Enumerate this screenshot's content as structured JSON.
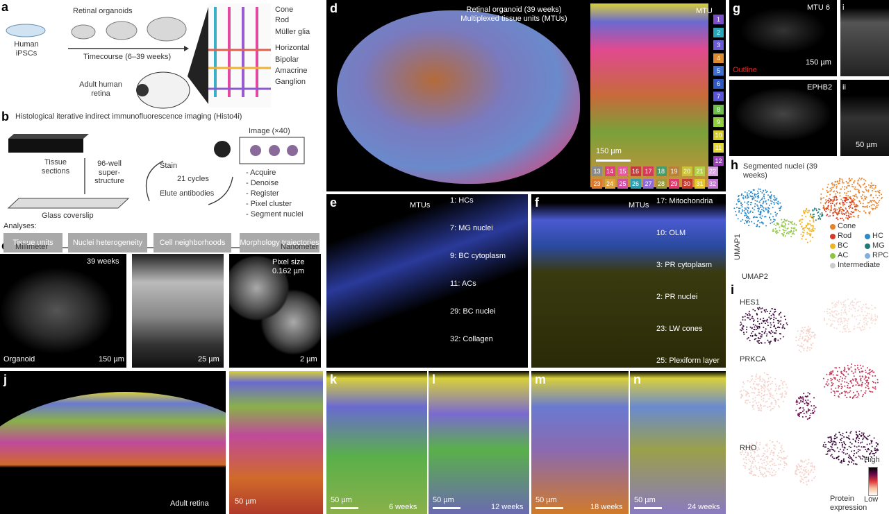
{
  "a": {
    "letter": "a",
    "organoids": "Retinal organoids",
    "ipsc": "Human iPSCs",
    "timecourse": "Timecourse (6–39 weeks)",
    "adult": "Adult human retina",
    "cells": [
      "Cone",
      "Rod",
      "Müller glia",
      "Horizontal",
      "Bipolar",
      "Amacrine",
      "Ganglion"
    ]
  },
  "b": {
    "letter": "b",
    "title": "Histological iterative indirect immunofluorescence imaging (Histo4i)",
    "sections": "Tissue sections",
    "superstructure": "96-well super-structure",
    "coverslip": "Glass coverslip",
    "stain": "Stain",
    "cycles": "21 cycles",
    "elute": "Elute antibodies",
    "image": "Image (×40)",
    "steps": [
      "- Acquire",
      "- Denoise",
      "- Register",
      "- Pixel cluster",
      "- Segment nuclei"
    ],
    "analyses_label": "Analyses:",
    "analyses": [
      "Tissue units",
      "Nuclei heterogeneity",
      "Cell neighborhoods",
      "Morphology trajectories"
    ]
  },
  "c": {
    "letter": "c",
    "left": "Millimeter",
    "right": "Nanometer",
    "weeks": "39 weeks",
    "organoid": "Organoid",
    "scale1": "150 µm",
    "scale2": "25 µm",
    "pixel": "Pixel size 0.162 µm",
    "scale3": "2 µm"
  },
  "d": {
    "letter": "d",
    "title": "Retinal organoid (39 weeks) Multiplexed tissue units (MTUs)",
    "mtu": "MTU",
    "scale": "150 µm",
    "units": [
      {
        "label": "1",
        "color": "#7b4fc9"
      },
      {
        "label": "2",
        "color": "#2aa6b8"
      },
      {
        "label": "3",
        "color": "#6a5bd6"
      },
      {
        "label": "4",
        "color": "#e08a2e"
      },
      {
        "label": "5",
        "color": "#3f6fd1"
      },
      {
        "label": "6",
        "color": "#2f58c2"
      },
      {
        "label": "7",
        "color": "#5a56d8"
      },
      {
        "label": "8",
        "color": "#6cc04a"
      },
      {
        "label": "9",
        "color": "#8fcf3a"
      },
      {
        "label": "10",
        "color": "#d6cf2e"
      },
      {
        "label": "11",
        "color": "#e6d83a"
      },
      {
        "label": "12",
        "color": "#9a3fb8"
      },
      {
        "label": "13",
        "color": "#8a8a8a"
      },
      {
        "label": "14",
        "color": "#e0407a"
      },
      {
        "label": "15",
        "color": "#e85aa0"
      },
      {
        "label": "16",
        "color": "#c43c3c"
      },
      {
        "label": "17",
        "color": "#d23b5a"
      },
      {
        "label": "18",
        "color": "#4a9a6a"
      },
      {
        "label": "19",
        "color": "#b9813a"
      },
      {
        "label": "20",
        "color": "#c9c23a"
      },
      {
        "label": "21",
        "color": "#b6d04a"
      },
      {
        "label": "22",
        "color": "#d7a2e0"
      },
      {
        "label": "23",
        "color": "#d9782e"
      },
      {
        "label": "24",
        "color": "#e0a23a"
      },
      {
        "label": "25",
        "color": "#d24fa8"
      },
      {
        "label": "26",
        "color": "#2f9db0"
      },
      {
        "label": "27",
        "color": "#8e6ad6"
      },
      {
        "label": "28",
        "color": "#9a9a3a"
      },
      {
        "label": "29",
        "color": "#e03a6a"
      },
      {
        "label": "30",
        "color": "#c23a2e"
      },
      {
        "label": "31",
        "color": "#e6c62e"
      },
      {
        "label": "32",
        "color": "#c07ad0"
      }
    ]
  },
  "e": {
    "letter": "e",
    "mtus": "MTUs",
    "labels": [
      "1: HCs",
      "7: MG nuclei",
      "9: BC cytoplasm",
      "11: ACs",
      "29: BC nuclei",
      "32: Collagen"
    ]
  },
  "f": {
    "letter": "f",
    "mtus": "MTUs",
    "labels": [
      "17: Mitochondria",
      "10: OLM",
      "3: PR cytoplasm",
      "2: PR nuclei",
      "23: LW cones",
      "25: Plexiform layer"
    ]
  },
  "g": {
    "letter": "g",
    "mtu6": "MTU 6",
    "scale1": "150 µm",
    "outline": "Outline",
    "ephb2": "EPHB2",
    "scale2": "50 µm",
    "i": "i",
    "ii": "ii"
  },
  "h": {
    "letter": "h",
    "title": "Segmented nuclei (39 weeks)",
    "umap1": "UMAP1",
    "umap2": "UMAP2",
    "legend": [
      {
        "name": "Cone",
        "color": "#e8822a"
      },
      {
        "name": "Rod",
        "color": "#d83a26"
      },
      {
        "name": "HC",
        "color": "#2c8ac9"
      },
      {
        "name": "BC",
        "color": "#f0b423"
      },
      {
        "name": "MG",
        "color": "#1f7a74"
      },
      {
        "name": "AC",
        "color": "#8cc63f"
      },
      {
        "name": "RPC",
        "color": "#7fb0e0"
      },
      {
        "name": "Intermediate",
        "color": "#cccccc"
      }
    ]
  },
  "i": {
    "letter": "i",
    "markers": [
      "HES1",
      "PRKCA",
      "RHO"
    ],
    "high": "High",
    "low": "Low",
    "expression": "Protein expression"
  },
  "j": {
    "letter": "j",
    "adult": "Adult retina",
    "scale": "50 µm"
  },
  "time": [
    {
      "letter": "k",
      "scale": "50 µm",
      "weeks": "6 weeks"
    },
    {
      "letter": "l",
      "scale": "50 µm",
      "weeks": "12 weeks"
    },
    {
      "letter": "m",
      "scale": "50 µm",
      "weeks": "18 weeks"
    },
    {
      "letter": "n",
      "scale": "50 µm",
      "weeks": "24 weeks"
    }
  ]
}
